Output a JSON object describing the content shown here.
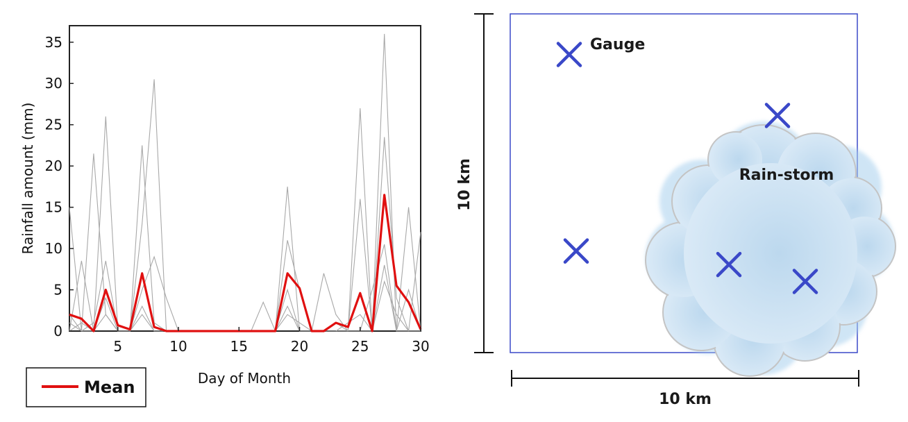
{
  "chart_data": {
    "type": "line",
    "xlabel": "Day of Month",
    "ylabel": "Rainfall amount (mm)",
    "xlim": [
      1,
      30
    ],
    "ylim": [
      0,
      37
    ],
    "xticks": [
      5,
      10,
      15,
      20,
      25,
      30
    ],
    "yticks": [
      0,
      5,
      10,
      15,
      20,
      25,
      30,
      35
    ],
    "legend": {
      "label": "Mean",
      "placement": "bottom-left"
    },
    "grid": false,
    "colors": {
      "mean": "#e01010",
      "gauges": "#a8a8a8"
    },
    "x": [
      1,
      2,
      3,
      4,
      5,
      6,
      7,
      8,
      9,
      10,
      11,
      12,
      13,
      14,
      15,
      16,
      17,
      18,
      19,
      20,
      21,
      22,
      23,
      24,
      25,
      26,
      27,
      28,
      29,
      30
    ],
    "series": [
      {
        "name": "Mean",
        "values": [
          2,
          1.5,
          0,
          5,
          0.7,
          0.2,
          7,
          0.5,
          0,
          0,
          0,
          0,
          0,
          0,
          0,
          0,
          0,
          0,
          7,
          5.2,
          0,
          0,
          1,
          0.5,
          4.6,
          0,
          16.5,
          5.5,
          3.5,
          0.2
        ]
      },
      {
        "values": [
          15,
          0,
          21.5,
          2,
          0,
          0,
          22.5,
          1,
          0,
          0,
          0,
          0,
          0,
          0,
          0,
          0,
          0,
          0,
          17.5,
          0,
          0,
          0,
          0,
          0,
          27,
          0,
          36,
          0,
          15,
          0
        ]
      },
      {
        "values": [
          0,
          8.5,
          0,
          26,
          0,
          0,
          13,
          30.5,
          0,
          0,
          0,
          0,
          0,
          0,
          0,
          0,
          0,
          0,
          11,
          5,
          0,
          0,
          0,
          0,
          16,
          0,
          23.5,
          4,
          0,
          12
        ]
      },
      {
        "values": [
          2,
          0,
          1,
          8.5,
          0,
          0,
          5,
          9,
          4,
          0,
          0,
          0,
          0,
          0,
          0,
          0,
          3.5,
          0,
          5,
          0,
          0,
          7,
          2,
          0,
          0,
          5,
          10.5,
          0,
          0,
          0
        ]
      },
      {
        "values": [
          0,
          1,
          0,
          4,
          0,
          0,
          3,
          0,
          0,
          0,
          0,
          0,
          0,
          0,
          0,
          0,
          0,
          0,
          2,
          1,
          0,
          0,
          0,
          1,
          2,
          0,
          6,
          2,
          0,
          0
        ]
      },
      {
        "values": [
          1,
          0,
          0,
          2,
          0,
          0,
          2,
          0,
          0,
          0,
          0,
          0,
          0,
          0,
          0,
          0,
          0,
          0,
          3,
          0,
          0,
          0,
          1,
          0,
          0,
          0,
          8,
          0,
          5,
          0
        ]
      }
    ]
  },
  "diagram": {
    "gauge_label": "Gauge",
    "storm_label": "Rain-storm",
    "side_label_vertical": "10 km",
    "side_label_horizontal": "10 km",
    "gauges": [
      {
        "x_km": 1.7,
        "y_km": 8.8
      },
      {
        "x_km": 7.7,
        "y_km": 7.0
      },
      {
        "x_km": 1.9,
        "y_km": 3.0
      },
      {
        "x_km": 6.3,
        "y_km": 2.6
      },
      {
        "x_km": 8.5,
        "y_km": 2.1
      }
    ],
    "colors": {
      "box": "#3a48c8",
      "marker": "#3a48c8",
      "storm_fill": "#cfe3f2",
      "storm_edge": "#c9c9c9"
    }
  }
}
